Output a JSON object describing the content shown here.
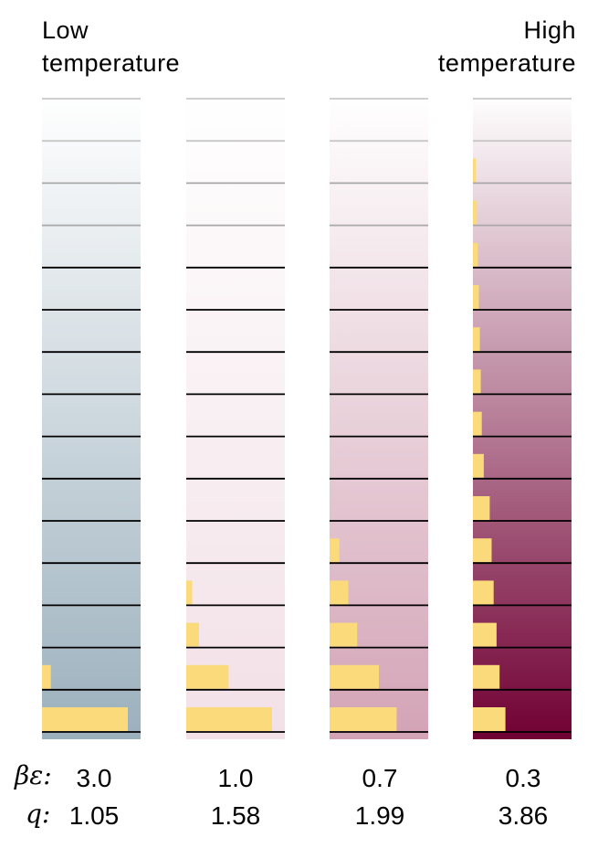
{
  "header": {
    "low_line1": "Low",
    "low_line2": "temperature",
    "high_line1": "High",
    "high_line2": "temperature"
  },
  "labels": {
    "beta_epsilon": "βε:",
    "q": "q:"
  },
  "levels": 16,
  "bar_color": "#fada7a",
  "columns": [
    {
      "beta_epsilon": "3.0",
      "q": "1.05",
      "gradient_top": "#ffffff",
      "gradient_bottom": "#9bb0bd",
      "populations": [
        0.87,
        0.09,
        0,
        0,
        0,
        0,
        0,
        0,
        0,
        0,
        0,
        0,
        0,
        0,
        0,
        0
      ]
    },
    {
      "beta_epsilon": "1.0",
      "q": "1.58",
      "gradient_top": "#ffffff",
      "gradient_bottom": "#f2e0e6",
      "populations": [
        0.87,
        0.43,
        0.13,
        0.06,
        0,
        0,
        0,
        0,
        0,
        0,
        0,
        0,
        0,
        0,
        0,
        0
      ]
    },
    {
      "beta_epsilon": "0.7",
      "q": "1.99",
      "gradient_top": "#ffffff",
      "gradient_bottom": "#d3a3b5",
      "populations": [
        0.68,
        0.5,
        0.28,
        0.19,
        0.1,
        0,
        0,
        0,
        0,
        0,
        0,
        0,
        0,
        0,
        0,
        0
      ]
    },
    {
      "beta_epsilon": "0.3",
      "q": "3.86",
      "gradient_top": "#ffffff",
      "gradient_bottom": "#700033",
      "populations": [
        0.33,
        0.27,
        0.24,
        0.21,
        0.19,
        0.17,
        0.11,
        0.09,
        0.08,
        0.07,
        0.06,
        0.05,
        0.04,
        0.03,
        0,
        0
      ]
    }
  ]
}
